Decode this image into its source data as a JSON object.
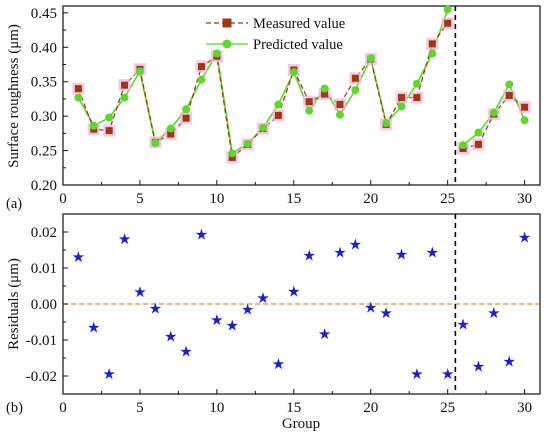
{
  "colors": {
    "measured": "#9b3a12",
    "predicted": "#5ed62e",
    "residual": "#1a22c8",
    "zero_line": "#d6902b",
    "marker_halo": "#f4b6e0",
    "axis": "#111111"
  },
  "chart_data": [
    {
      "type": "line",
      "panel_label": "(a)",
      "xlabel": "",
      "ylabel": "Surface roughness (μm)",
      "xlim": [
        0,
        31
      ],
      "ylim": [
        0.2,
        0.46
      ],
      "x_ticks": [
        "0",
        "5",
        "10",
        "15",
        "20",
        "25",
        "30"
      ],
      "y_ticks": [
        "0.20",
        "0.25",
        "0.30",
        "0.35",
        "0.40",
        "0.45"
      ],
      "split_at": 25.5,
      "legend_position": "top-center",
      "x": [
        1,
        2,
        3,
        4,
        5,
        6,
        7,
        8,
        9,
        10,
        11,
        12,
        13,
        14,
        15,
        16,
        17,
        18,
        19,
        20,
        21,
        22,
        23,
        24,
        25,
        26,
        27,
        28,
        29,
        30
      ],
      "series": [
        {
          "name": "Measured value",
          "style": "dashed-square",
          "values": [
            0.34,
            0.281,
            0.279,
            0.345,
            0.368,
            0.262,
            0.274,
            0.297,
            0.372,
            0.387,
            0.24,
            0.259,
            0.282,
            0.301,
            0.367,
            0.321,
            0.332,
            0.317,
            0.355,
            0.383,
            0.288,
            0.327,
            0.327,
            0.405,
            0.435,
            0.253,
            0.259,
            0.303,
            0.33,
            0.313
          ]
        },
        {
          "name": "Predicted value",
          "style": "solid-circle",
          "values": [
            0.327,
            0.286,
            0.298,
            0.327,
            0.365,
            0.261,
            0.282,
            0.31,
            0.353,
            0.391,
            0.246,
            0.26,
            0.283,
            0.317,
            0.364,
            0.308,
            0.34,
            0.302,
            0.338,
            0.384,
            0.29,
            0.314,
            0.347,
            0.391,
            0.455,
            0.258,
            0.276,
            0.305,
            0.346,
            0.294
          ]
        }
      ]
    },
    {
      "type": "scatter",
      "panel_label": "(b)",
      "xlabel": "Group",
      "ylabel": "Residuals (μm)",
      "xlim": [
        0,
        31
      ],
      "ylim": [
        -0.025,
        0.025
      ],
      "x_ticks": [
        "0",
        "5",
        "10",
        "15",
        "20",
        "25",
        "30"
      ],
      "y_ticks": [
        "-0.02",
        "-0.01",
        "0.00",
        "0.01",
        "0.02"
      ],
      "split_at": 25.5,
      "reference_line": 0,
      "x": [
        1,
        2,
        3,
        4,
        5,
        6,
        7,
        8,
        9,
        10,
        11,
        12,
        13,
        14,
        15,
        16,
        17,
        18,
        19,
        20,
        21,
        22,
        23,
        24,
        25,
        26,
        27,
        28,
        29,
        30
      ],
      "values": [
        0.013,
        -0.0065,
        -0.0195,
        0.018,
        0.0033,
        -0.0013,
        -0.009,
        -0.0132,
        0.0193,
        -0.0045,
        -0.006,
        -0.0015,
        0.0017,
        -0.0167,
        0.0035,
        0.0135,
        -0.0083,
        0.0143,
        0.0165,
        -0.001,
        -0.0025,
        0.0137,
        -0.0195,
        0.0143,
        -0.0195,
        -0.0057,
        -0.0173,
        -0.0025,
        -0.016,
        0.0185
      ]
    }
  ]
}
